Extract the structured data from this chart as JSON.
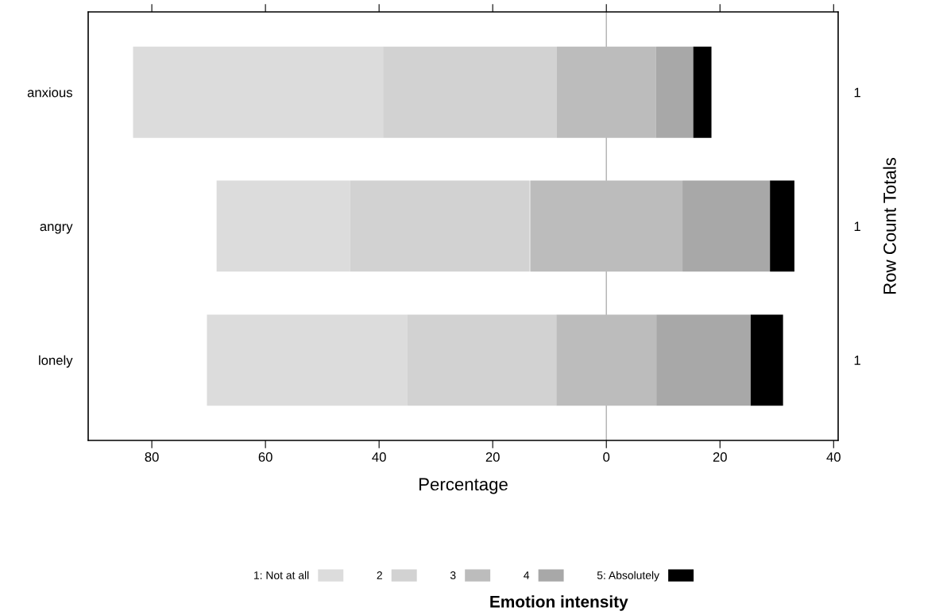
{
  "chart_data": {
    "type": "bar",
    "orientation": "horizontal",
    "categories": [
      "anxious",
      "angry",
      "lonely"
    ],
    "y2_categories": [
      "1",
      "1",
      "1"
    ],
    "series": [
      {
        "name": "1: Not at all",
        "color": "#dcdcdc",
        "values": [
          44.0,
          23.5,
          35.3
        ],
        "base": [
          -83.3,
          -68.6,
          -70.3
        ]
      },
      {
        "name": "2",
        "color": "#d2d2d2",
        "values": [
          30.6,
          31.6,
          26.2
        ],
        "base": [
          -39.3,
          -45.1,
          -35.0
        ]
      },
      {
        "name": "3",
        "color": "#bcbcbc",
        "values": [
          17.4,
          26.8,
          17.6
        ],
        "base": [
          -8.7,
          -13.4,
          -8.8
        ]
      },
      {
        "name": "4",
        "color": "#a8a8a8",
        "values": [
          6.6,
          15.4,
          16.6
        ],
        "base": [
          8.7,
          13.4,
          8.8
        ]
      },
      {
        "name": "5: Absolutely",
        "color": "#000000",
        "values": [
          3.2,
          4.3,
          5.7
        ],
        "base": [
          15.3,
          28.8,
          25.4
        ]
      }
    ],
    "xlabel": "Percentage",
    "y2label": "Row Count Totals",
    "legend_title": "Emotion intensity",
    "xlim": [
      -91.2,
      40.8
    ],
    "xticks": [
      {
        "value": -80,
        "label": "80"
      },
      {
        "value": -60,
        "label": "60"
      },
      {
        "value": -40,
        "label": "40"
      },
      {
        "value": -20,
        "label": "20"
      },
      0,
      20,
      40
    ],
    "ref_lines": [
      {
        "axis": "x",
        "value": 0,
        "color": "#b0b0b0"
      }
    ],
    "grid": false,
    "legend": "bottom"
  }
}
